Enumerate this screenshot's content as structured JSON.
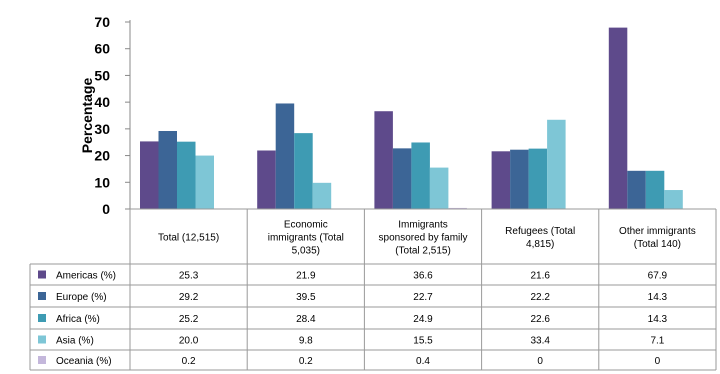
{
  "chart_data": {
    "type": "bar",
    "ylabel": "Percentage",
    "ylim": [
      0,
      70
    ],
    "yticks": [
      "0",
      "10",
      "20",
      "30",
      "40",
      "50",
      "60",
      "70"
    ],
    "categories": [
      [
        "Total (12,515)"
      ],
      [
        "Economic",
        "immigrants (Total",
        "5,035)"
      ],
      [
        "Immigrants",
        "sponsored by family",
        "(Total 2,515)"
      ],
      [
        "Refugees (Total",
        "4,815)"
      ],
      [
        "Other immigrants",
        "(Total 140)"
      ]
    ],
    "series": [
      {
        "name": "Americas (%)",
        "color": "#5E4A8B",
        "values": [
          25.3,
          21.9,
          36.6,
          21.6,
          67.9
        ],
        "labels": [
          "25.3",
          "21.9",
          "36.6",
          "21.6",
          "67.9"
        ]
      },
      {
        "name": "Europe (%)",
        "color": "#3C6596",
        "values": [
          29.2,
          39.5,
          22.7,
          22.2,
          14.3
        ],
        "labels": [
          "29.2",
          "39.5",
          "22.7",
          "22.2",
          "14.3"
        ]
      },
      {
        "name": "Africa (%)",
        "color": "#3E9BB3",
        "values": [
          25.2,
          28.4,
          24.9,
          22.6,
          14.3
        ],
        "labels": [
          "25.2",
          "28.4",
          "24.9",
          "22.6",
          "14.3"
        ]
      },
      {
        "name": "Asia (%)",
        "color": "#7EC6D6",
        "values": [
          20.0,
          9.8,
          15.5,
          33.4,
          7.1
        ],
        "labels": [
          "20.0",
          "9.8",
          "15.5",
          "33.4",
          "7.1"
        ]
      },
      {
        "name": "Oceania (%)",
        "color": "#C4B7DB",
        "values": [
          0.2,
          0.2,
          0.4,
          0,
          0
        ],
        "labels": [
          "0.2",
          "0.2",
          "0.4",
          "0",
          "0"
        ]
      }
    ],
    "grid": false,
    "legend": "table-left"
  }
}
